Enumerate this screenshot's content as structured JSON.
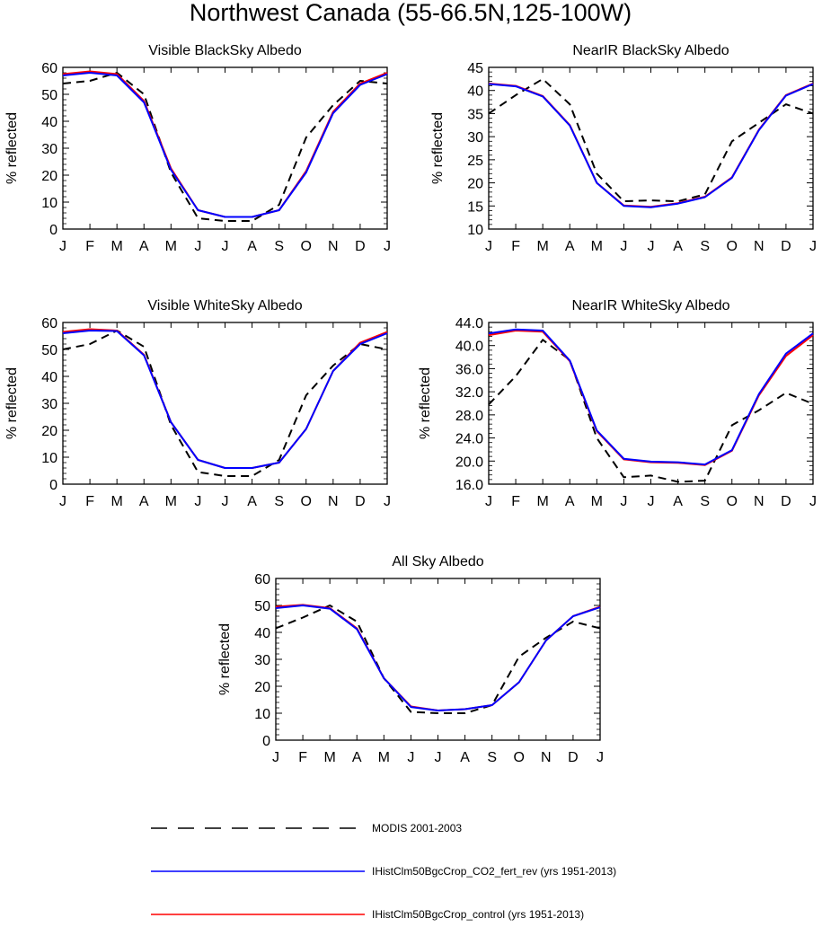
{
  "figure_title": "Northwest Canada (55-66.5N,125-100W)",
  "legend": [
    {
      "key": "modis",
      "label": "MODIS 2001-2003",
      "color": "#000000",
      "dash": true
    },
    {
      "key": "fert",
      "label": "IHistClm50BgcCrop_CO2_fert_rev (yrs 1951-2013)",
      "color": "#0000ff",
      "dash": false
    },
    {
      "key": "control",
      "label": "IHistClm50BgcCrop_control (yrs 1951-2013)",
      "color": "#ff0000",
      "dash": false
    }
  ],
  "chart_data": [
    {
      "type": "line",
      "title": "Visible BlackSky Albedo",
      "ylabel": "% reflected",
      "categories": [
        "J",
        "F",
        "M",
        "A",
        "M",
        "J",
        "J",
        "A",
        "S",
        "O",
        "N",
        "D",
        "J"
      ],
      "ylim": [
        0,
        60
      ],
      "yticks": [
        "0",
        "10",
        "20",
        "30",
        "40",
        "50",
        "60"
      ],
      "series": [
        {
          "key": "modis",
          "values": [
            54,
            55,
            58,
            50,
            21,
            4,
            3,
            3,
            9,
            34,
            46,
            55,
            54
          ]
        },
        {
          "key": "control",
          "values": [
            57.5,
            58.5,
            57.5,
            47.5,
            22.5,
            7,
            4.5,
            4.5,
            7,
            21.5,
            43.5,
            54,
            58
          ]
        },
        {
          "key": "fert",
          "values": [
            57,
            58,
            57,
            47,
            22,
            7,
            4.5,
            4.5,
            7,
            21,
            43,
            53.5,
            57.5
          ]
        }
      ]
    },
    {
      "type": "line",
      "title": "NearIR BlackSky Albedo",
      "ylabel": "% reflected",
      "categories": [
        "J",
        "F",
        "M",
        "A",
        "M",
        "J",
        "J",
        "A",
        "S",
        "O",
        "N",
        "D",
        "J"
      ],
      "ylim": [
        10,
        45
      ],
      "yticks": [
        "10",
        "15",
        "20",
        "25",
        "30",
        "35",
        "40",
        "45"
      ],
      "series": [
        {
          "key": "modis",
          "values": [
            35,
            39,
            42.5,
            37,
            22,
            16,
            16.2,
            16,
            17.5,
            29,
            33,
            37,
            35
          ]
        },
        {
          "key": "control",
          "values": [
            41.5,
            41,
            38.8,
            32.5,
            20,
            15.1,
            14.8,
            15.6,
            17,
            21.2,
            31.5,
            39,
            41.5
          ]
        },
        {
          "key": "fert",
          "values": [
            41.4,
            40.9,
            38.7,
            32.4,
            20,
            15,
            14.7,
            15.5,
            16.9,
            21.1,
            31.4,
            38.9,
            41.4
          ]
        }
      ]
    },
    {
      "type": "line",
      "title": "Visible WhiteSky Albedo",
      "ylabel": "% reflected",
      "categories": [
        "J",
        "F",
        "M",
        "A",
        "M",
        "J",
        "J",
        "A",
        "S",
        "O",
        "N",
        "D",
        "J"
      ],
      "ylim": [
        0,
        60
      ],
      "yticks": [
        "0",
        "10",
        "20",
        "30",
        "40",
        "50",
        "60"
      ],
      "series": [
        {
          "key": "modis",
          "values": [
            50,
            52,
            57,
            51,
            22,
            4.5,
            3,
            3,
            9,
            33,
            44,
            52,
            50
          ]
        },
        {
          "key": "control",
          "values": [
            56.5,
            57.5,
            57,
            48,
            23,
            9,
            6,
            6,
            8,
            20.5,
            42,
            52.5,
            56.5
          ]
        },
        {
          "key": "fert",
          "values": [
            56,
            57,
            56.8,
            47.8,
            23,
            9,
            6,
            6,
            8,
            20.5,
            42,
            52,
            56
          ]
        }
      ]
    },
    {
      "type": "line",
      "title": "NearIR WhiteSky Albedo",
      "ylabel": "% reflected",
      "categories": [
        "J",
        "F",
        "M",
        "A",
        "M",
        "J",
        "J",
        "A",
        "S",
        "O",
        "N",
        "D",
        "J"
      ],
      "ylim": [
        16,
        44
      ],
      "yticks": [
        "16.0",
        "20.0",
        "24.0",
        "28.0",
        "32.0",
        "36.0",
        "40.0",
        "44.0"
      ],
      "series": [
        {
          "key": "modis",
          "values": [
            29.8,
            34.7,
            41,
            37.5,
            24,
            17.2,
            17.5,
            16.4,
            16.6,
            26.2,
            28.8,
            31.8,
            29.9
          ]
        },
        {
          "key": "control",
          "values": [
            41.8,
            42.6,
            42.4,
            37.3,
            25.2,
            20.3,
            19.8,
            19.7,
            19.3,
            21.8,
            31.4,
            38.2,
            41.8
          ]
        },
        {
          "key": "fert",
          "values": [
            42.1,
            42.8,
            42.6,
            37.4,
            25.3,
            20.4,
            19.9,
            19.8,
            19.4,
            21.9,
            31.6,
            38.6,
            42.1
          ]
        }
      ]
    },
    {
      "type": "line",
      "title": "All Sky Albedo",
      "ylabel": "% reflected",
      "categories": [
        "J",
        "F",
        "M",
        "A",
        "M",
        "J",
        "J",
        "A",
        "S",
        "O",
        "N",
        "D",
        "J"
      ],
      "ylim": [
        0,
        60
      ],
      "yticks": [
        "0",
        "10",
        "20",
        "30",
        "40",
        "50",
        "60"
      ],
      "series": [
        {
          "key": "modis",
          "values": [
            41.5,
            45.5,
            50,
            44,
            23,
            10.5,
            10,
            10,
            13,
            31,
            38,
            44,
            41.5
          ]
        },
        {
          "key": "control",
          "values": [
            49.5,
            50.2,
            49,
            41.5,
            23,
            12.5,
            11,
            11.5,
            13,
            21.5,
            37,
            46,
            49.5
          ]
        },
        {
          "key": "fert",
          "values": [
            49,
            50,
            48.8,
            41.2,
            23,
            12.3,
            11,
            11.5,
            13,
            21.5,
            37,
            46,
            49.3
          ]
        }
      ]
    }
  ]
}
